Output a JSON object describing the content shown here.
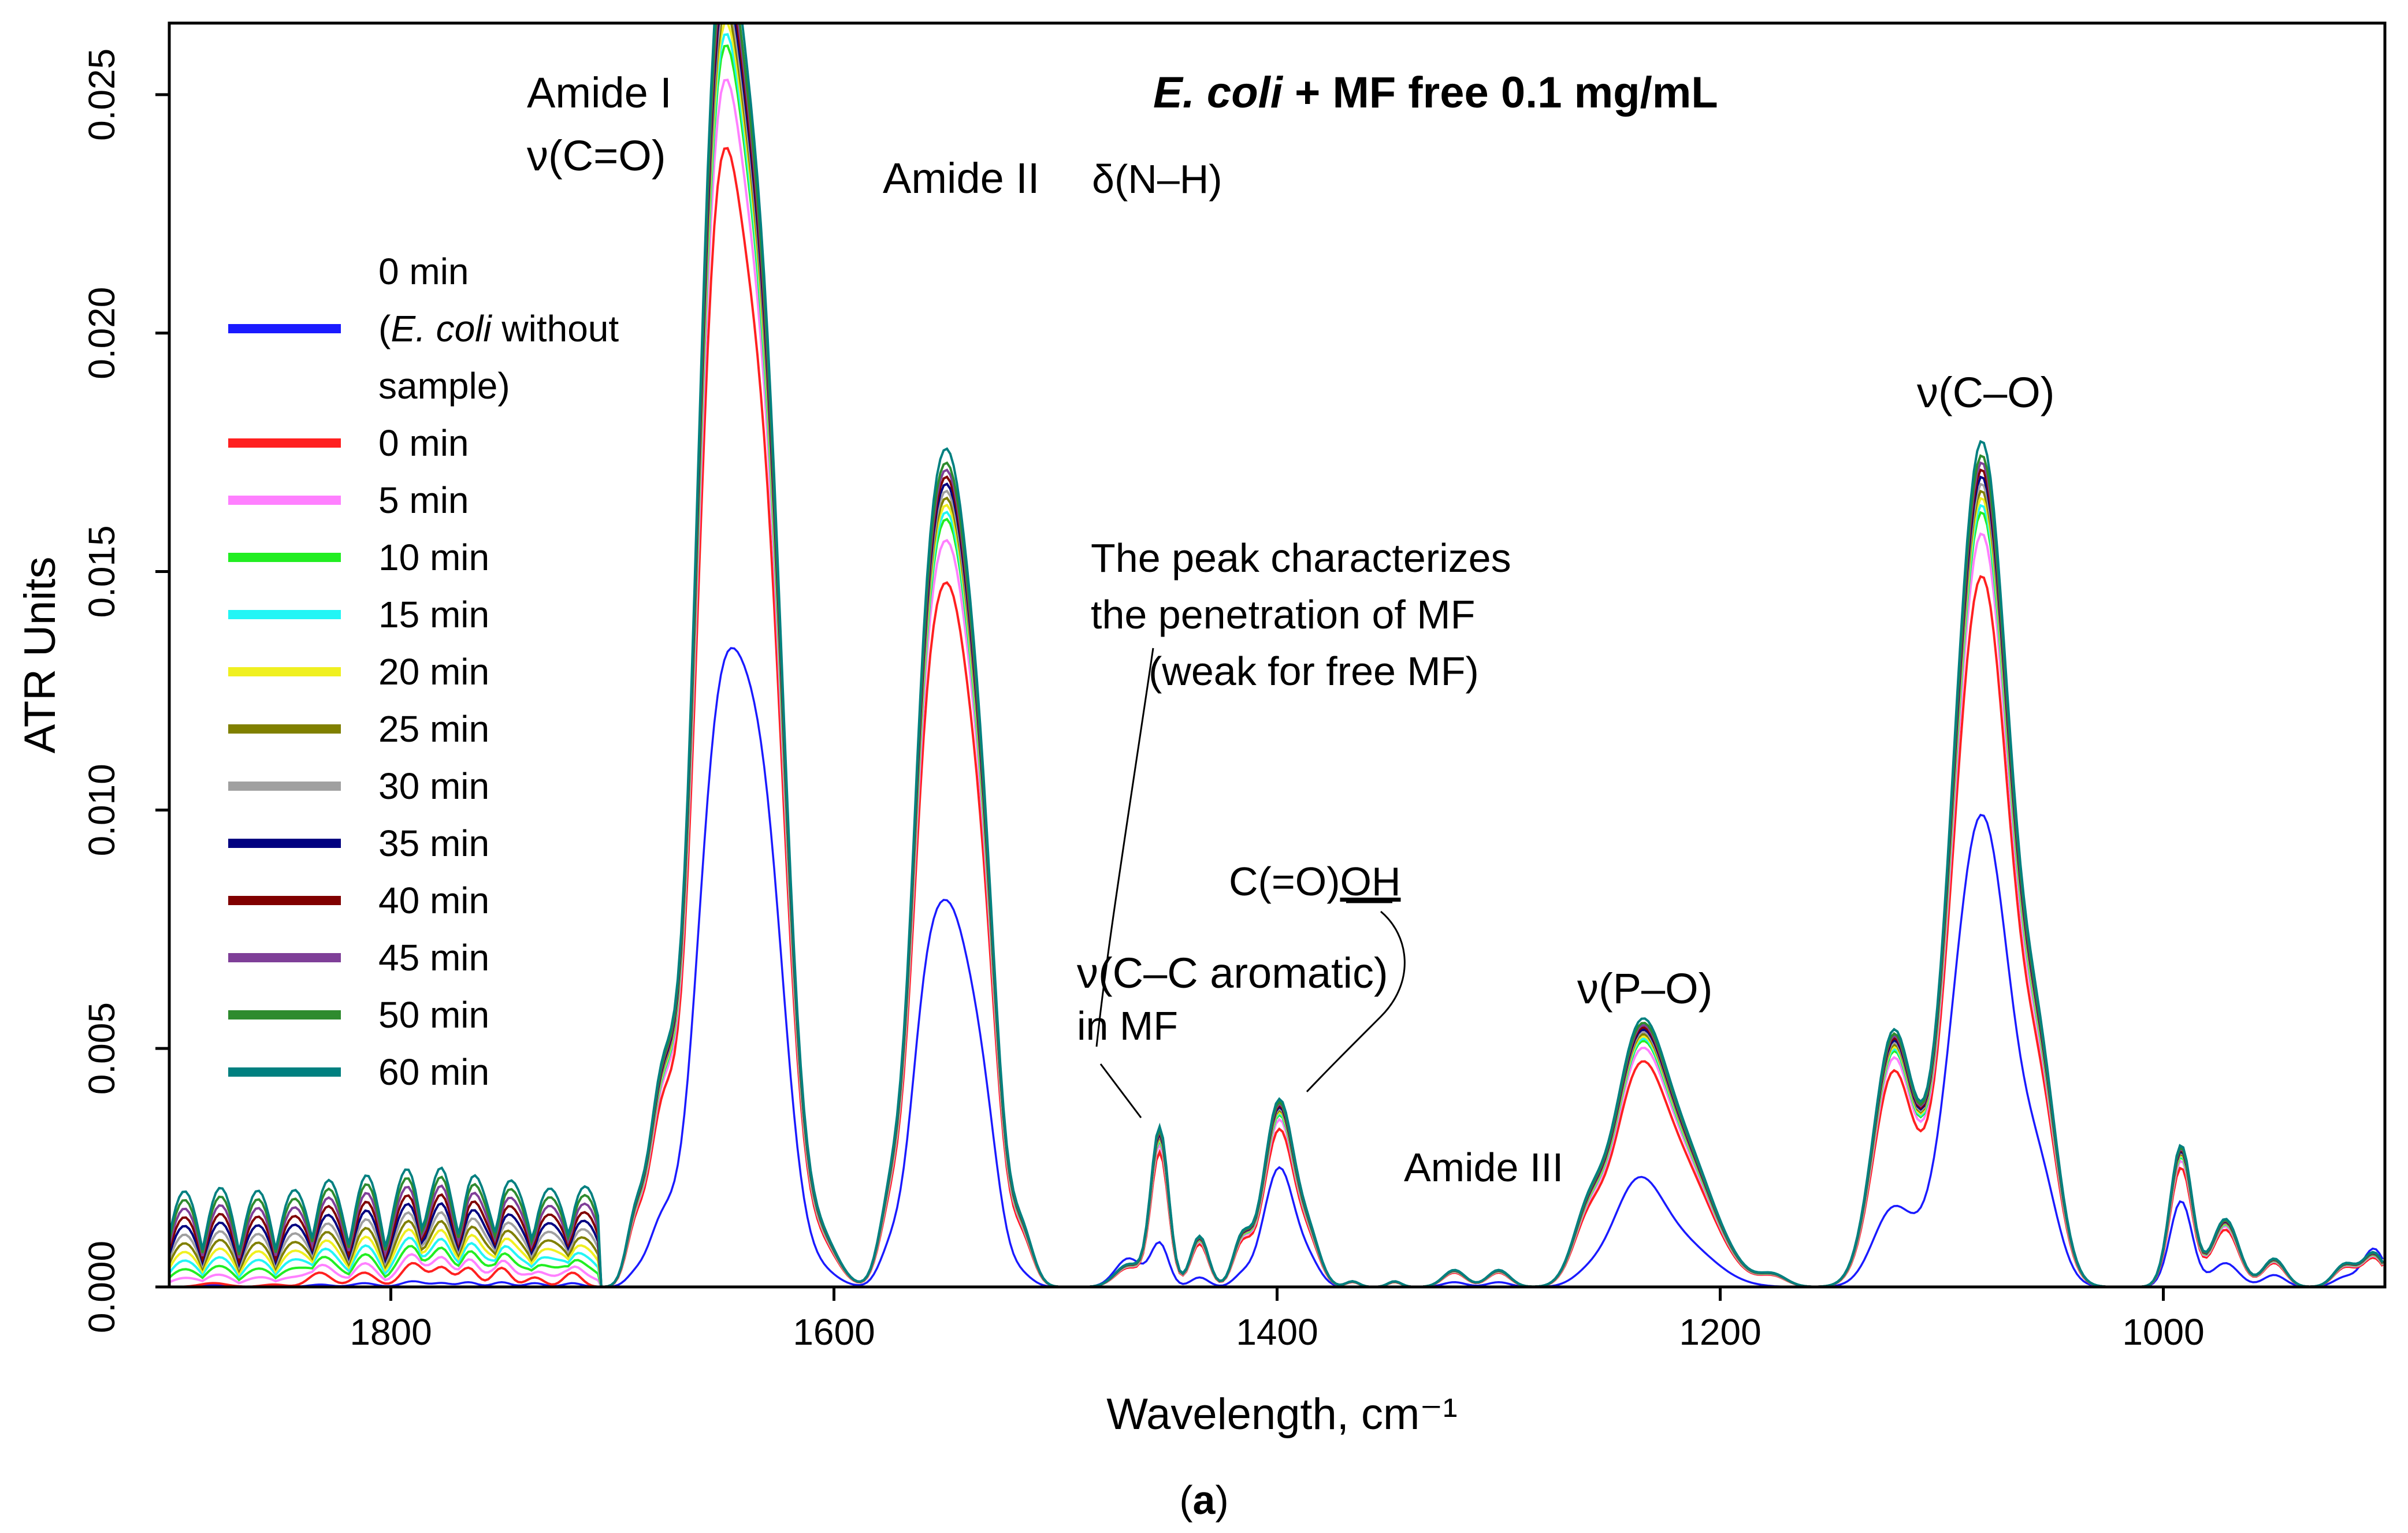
{
  "chart_data": {
    "type": "line",
    "title": {
      "italic": "E. coli",
      "rest": " + MF free 0.1 mg/mL"
    },
    "xlabel": "Wavelength, cm⁻¹",
    "ylabel": "ATR Units",
    "xlim": [
      1900,
      900
    ],
    "ylim": [
      0,
      0.0265
    ],
    "xticks": [
      1800,
      1600,
      1400,
      1200,
      1000
    ],
    "xtick_labels": [
      "1800",
      "1600",
      "1400",
      "1200",
      "1000"
    ],
    "yticks": [
      0,
      0.005,
      0.01,
      0.015,
      0.02,
      0.025
    ],
    "ytick_labels": [
      "0.000",
      "0.005",
      "0.010",
      "0.015",
      "0.020",
      "0.025"
    ],
    "subcaption": {
      "bold": "a",
      "open": "(",
      "close": ")"
    },
    "legend": {
      "placement": "left",
      "entries": [
        {
          "lines": [
            "0 min",
            "(E. coli without",
            "sample)"
          ],
          "italic": "E. coli",
          "color": "#1a1aff"
        },
        {
          "lines": [
            "0 min"
          ],
          "color": "#ff2020"
        },
        {
          "lines": [
            "5 min"
          ],
          "color": "#ff80ff"
        },
        {
          "lines": [
            "10 min"
          ],
          "color": "#22ee22"
        },
        {
          "lines": [
            "15 min"
          ],
          "color": "#22f5f5"
        },
        {
          "lines": [
            "20 min"
          ],
          "color": "#f0f020"
        },
        {
          "lines": [
            "25 min"
          ],
          "color": "#808000"
        },
        {
          "lines": [
            "30 min"
          ],
          "color": "#a0a0a0"
        },
        {
          "lines": [
            "35 min"
          ],
          "color": "#000080"
        },
        {
          "lines": [
            "40 min"
          ],
          "color": "#800000"
        },
        {
          "lines": [
            "45 min"
          ],
          "color": "#7f3f98"
        },
        {
          "lines": [
            "50 min"
          ],
          "color": "#2e8b2e"
        },
        {
          "lines": [
            "60 min"
          ],
          "color": "#008080"
        }
      ]
    },
    "peaks_cm": [
      1880,
      1853,
      1832,
      1812,
      1790,
      1777,
      1765,
      1750,
      1735,
      1718,
      1690,
      1678,
      1655,
      1640,
      1628,
      1604,
      1575,
      1560,
      1547,
      1532,
      1515,
      1467,
      1453,
      1435,
      1416,
      1399,
      1385,
      1366,
      1347,
      1320,
      1300,
      1260,
      1238,
      1218,
      1176,
      1122,
      1082,
      1055,
      992,
      972,
      950,
      918,
      905
    ],
    "peak_widths_cm": [
      6,
      5,
      5,
      5,
      5,
      4,
      4,
      4,
      4,
      4,
      4,
      6,
      9,
      13,
      8,
      7,
      5,
      7,
      10,
      7,
      5,
      6,
      4,
      4,
      4,
      7,
      5,
      3,
      3,
      5,
      5,
      7,
      11,
      15,
      6,
      9,
      13,
      8,
      5,
      6,
      5,
      5,
      5
    ],
    "base_spectrum": [
      5e-05,
      3e-05,
      5e-05,
      8e-05,
      0.00012,
      8e-05,
      0.0001,
      0.0001,
      8e-05,
      8e-05,
      0.0002,
      0.0012,
      0.0058,
      0.0108,
      0.0022,
      0.0002,
      0.0006,
      0.0032,
      0.0072,
      0.0023,
      0.0002,
      0.0006,
      0.0009,
      0.0002,
      0.0002,
      0.0025,
      0.0004,
      0.0,
      0.0,
      0.0001,
      0.0001,
      0.0002,
      0.0019,
      0.0009,
      0.0,
      0.0016,
      0.0099,
      0.0017,
      0.0018,
      0.0005,
      0.00025,
      0.0002,
      0.0008
    ],
    "sample_spectrum": [
      8e-05,
      5e-05,
      0.0003,
      0.0003,
      0.0005,
      0.0004,
      0.0004,
      0.0004,
      0.0002,
      0.0003,
      0.001,
      0.0032,
      0.0125,
      0.0175,
      0.0036,
      0.0006,
      0.0012,
      0.0055,
      0.0132,
      0.0044,
      0.0009,
      0.0004,
      0.0028,
      0.0009,
      0.0008,
      0.0033,
      0.0007,
      0.0001,
      0.0001,
      0.0003,
      0.0003,
      0.0011,
      0.0036,
      0.0024,
      0.0002,
      0.0044,
      0.0149,
      0.0029,
      0.0025,
      0.0012,
      0.0005,
      0.0004,
      0.0006
    ],
    "scale": [
      1,
      1.06,
      1.09,
      1.1,
      1.11,
      1.12,
      1.13,
      1.14,
      1.15,
      1.16,
      1.17,
      1.19
    ],
    "low_region_growth": {
      "below_cm": 1700,
      "max_extra": 0.002
    },
    "annotations": {
      "amide1_line1": "Amide I",
      "amide1_line2": "ν(C=O)",
      "amide2": "Amide II",
      "nh": "δ(N–H)",
      "peak_note_1": "The peak characterizes",
      "peak_note_2": "the penetration of MF",
      "peak_note_3": "(weak for free MF)",
      "cc_line1": "ν(C–C aromatic)",
      "cc_line2": "in MF",
      "cooh_prefix": "C(=O)",
      "cooh_suffix": "OH",
      "po": "ν(P–O)",
      "amide3": "Amide III",
      "co": "ν(C–O)"
    }
  }
}
